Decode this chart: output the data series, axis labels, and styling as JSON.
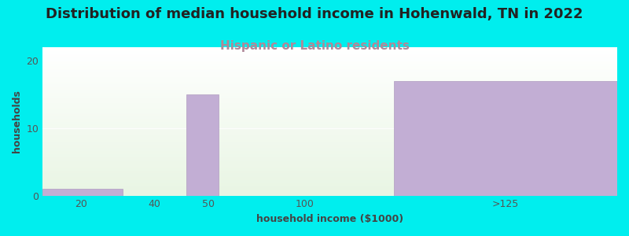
{
  "title": "Distribution of median household income in Hohenwald, TN in 2022",
  "subtitle": "Hispanic or Latino residents",
  "xlabel": "household income ($1000)",
  "ylabel": "households",
  "bar_lefts": [
    0,
    30,
    45,
    60,
    110
  ],
  "bar_widths": [
    25,
    10,
    10,
    45,
    70
  ],
  "values": [
    1,
    0,
    15,
    0,
    17
  ],
  "tick_positions": [
    12,
    35,
    52,
    82,
    145
  ],
  "tick_labels": [
    "20",
    "40",
    "50",
    "100",
    ">125"
  ],
  "bar_color": "#c2aed4",
  "bar_edgecolor": "#b09cc0",
  "bg_outer": "#00eeee",
  "bg_grad_top": "#ffffff",
  "bg_grad_bottom": "#e8f5e2",
  "ylim": [
    0,
    22
  ],
  "xlim": [
    0,
    180
  ],
  "yticks": [
    0,
    10,
    20
  ],
  "title_fontsize": 13,
  "subtitle_fontsize": 11,
  "subtitle_color": "#b08898",
  "axis_label_fontsize": 9,
  "tick_fontsize": 9,
  "title_color": "#222222"
}
